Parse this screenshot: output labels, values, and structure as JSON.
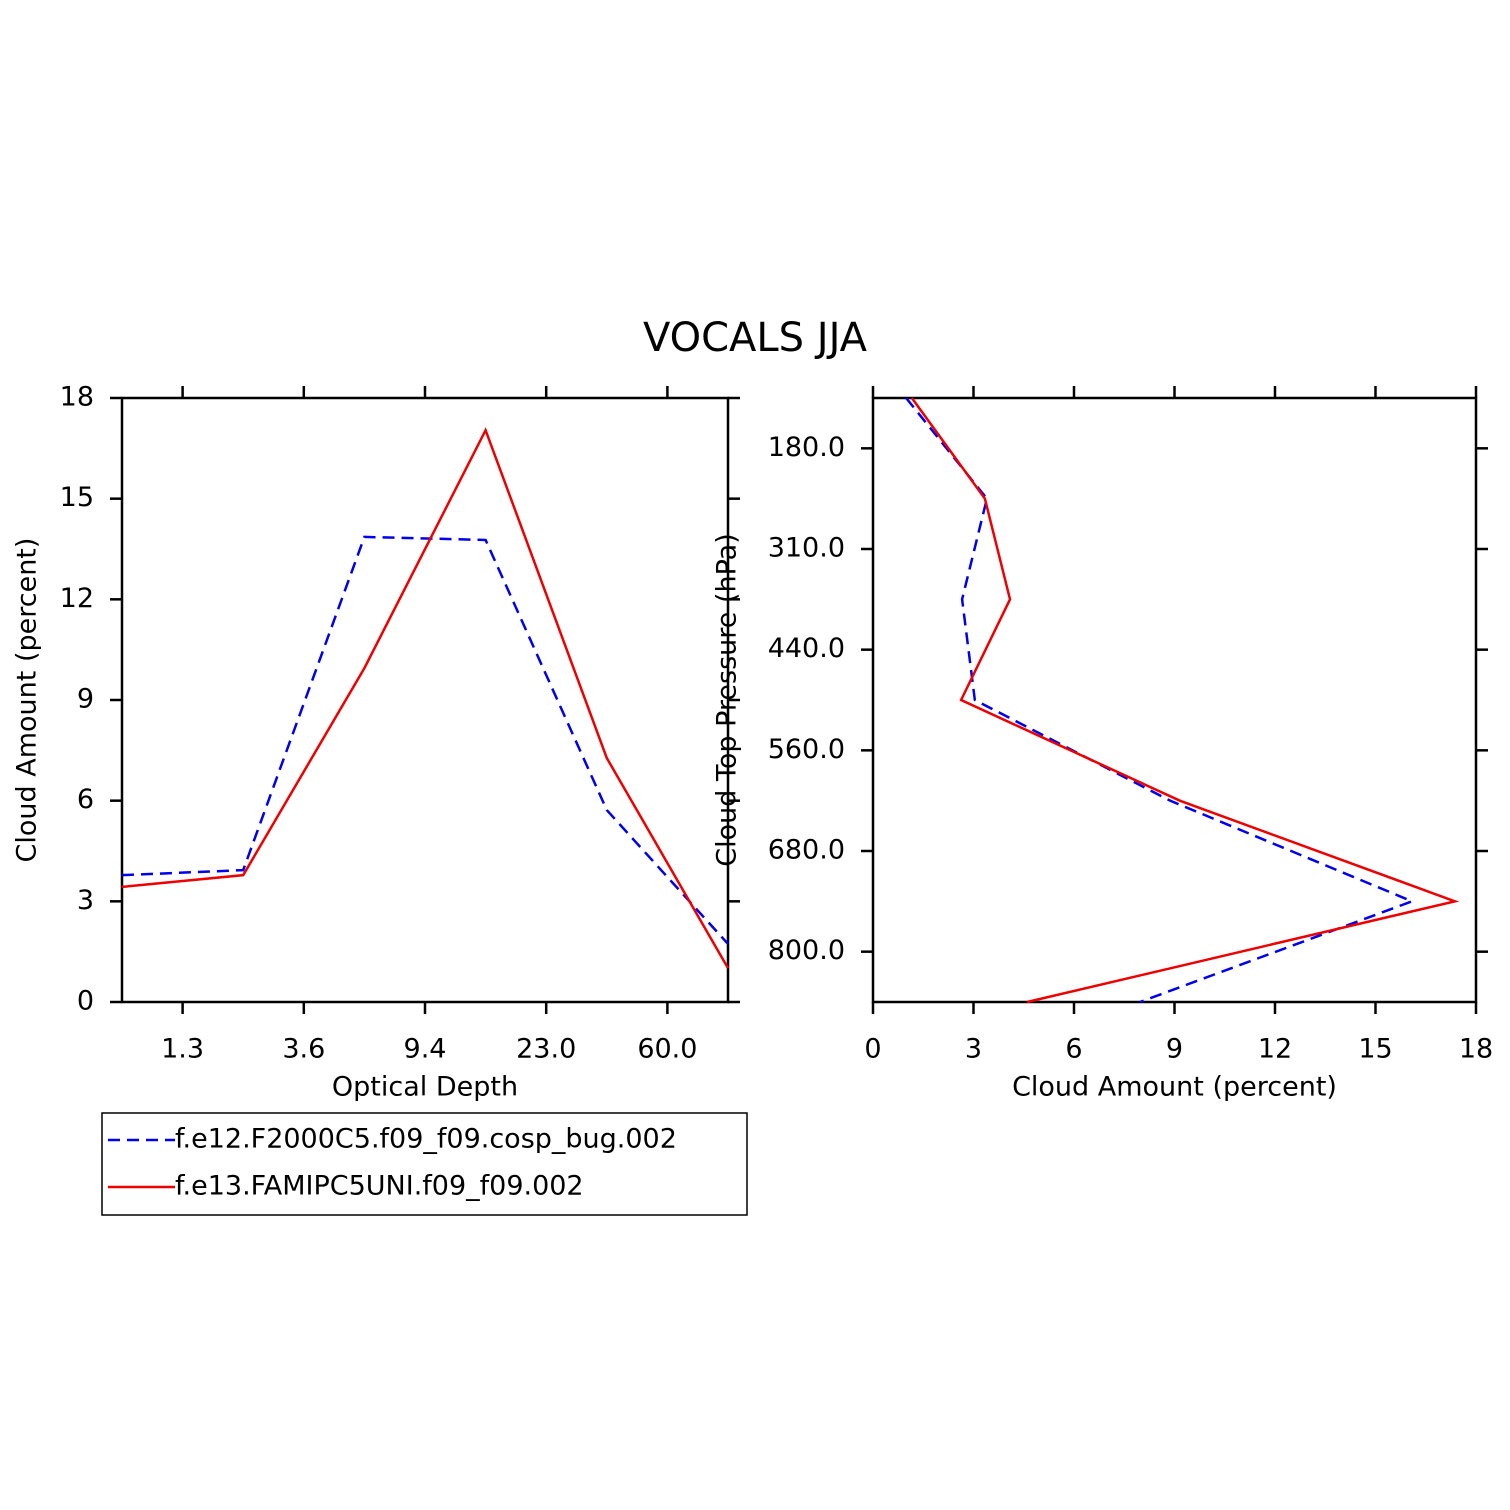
{
  "title": "VOCALS JJA",
  "chart_data": [
    {
      "type": "line",
      "orientation": "vertical",
      "xlabel": "Optical Depth",
      "ylabel": "Cloud Amount (percent)",
      "x": [
        0,
        1,
        2,
        3,
        4,
        5
      ],
      "xlim": [
        0,
        5
      ],
      "xticks": [
        {
          "value": 0.5,
          "label": "1.3"
        },
        {
          "value": 1.5,
          "label": "3.6"
        },
        {
          "value": 2.5,
          "label": "9.4"
        },
        {
          "value": 3.5,
          "label": "23.0"
        },
        {
          "value": 4.5,
          "label": "60.0"
        }
      ],
      "ylim": [
        0,
        18
      ],
      "yticks": [
        0,
        3,
        6,
        9,
        12,
        15,
        18
      ],
      "series": [
        {
          "name": "f.e12.F2000C5.f09_f09.cosp_bug.002",
          "color": "#0000ee",
          "linestyle": "dashed",
          "values": [
            3.78,
            3.93,
            13.86,
            13.77,
            5.72,
            1.73
          ]
        },
        {
          "name": "f.e13.FAMIPC5UNI.f09_f09.002",
          "color": "#ee0000",
          "linestyle": "solid",
          "values": [
            3.43,
            3.78,
            9.95,
            17.04,
            7.27,
            1.01
          ]
        }
      ]
    },
    {
      "type": "line",
      "orientation": "horizontal",
      "xlabel": "Cloud Amount (percent)",
      "ylabel": "Cloud Top Pressure (hPa)",
      "y": [
        0,
        1,
        2,
        3,
        4,
        5,
        6
      ],
      "ylim": [
        0,
        6
      ],
      "y_reversed": true,
      "yticks": [
        {
          "value": 0.5,
          "label": "180.0"
        },
        {
          "value": 1.5,
          "label": "310.0"
        },
        {
          "value": 2.5,
          "label": "440.0"
        },
        {
          "value": 3.5,
          "label": "560.0"
        },
        {
          "value": 4.5,
          "label": "680.0"
        },
        {
          "value": 5.5,
          "label": "800.0"
        }
      ],
      "xlim": [
        0,
        18
      ],
      "xticks": [
        0,
        3,
        6,
        9,
        12,
        15,
        18
      ],
      "series": [
        {
          "color": "#0000ee",
          "linestyle": "dashed",
          "values": [
            0.99,
            3.4,
            2.66,
            3.04,
            8.87,
            16.09,
            7.97
          ]
        },
        {
          "color": "#ee0000",
          "linestyle": "solid",
          "values": [
            1.16,
            3.34,
            4.09,
            2.63,
            9.16,
            17.37,
            4.6
          ]
        }
      ]
    }
  ]
}
